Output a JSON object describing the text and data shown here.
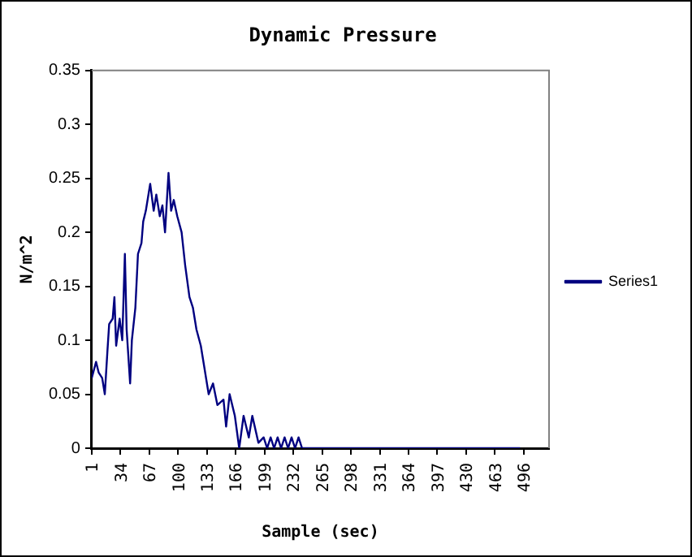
{
  "chart_data": {
    "type": "line",
    "title": "Dynamic Pressure",
    "xlabel": "Sample (sec)",
    "ylabel": "N/m^2",
    "xlim": [
      1,
      525
    ],
    "xticks": [
      1,
      34,
      67,
      100,
      133,
      166,
      199,
      232,
      265,
      298,
      331,
      364,
      397,
      430,
      463,
      496
    ],
    "ylim": [
      0,
      0.35
    ],
    "yticks": [
      0,
      0.05,
      0.1,
      0.15,
      0.2,
      0.25,
      0.3,
      0.35
    ],
    "grid": false,
    "legend": "right",
    "marker": "none",
    "line_style": "solid",
    "series": [
      {
        "name": "Series1",
        "color": "#000080",
        "x": [
          1,
          6,
          9,
          13,
          16,
          19,
          21,
          25,
          27,
          29,
          33,
          36,
          39,
          41,
          45,
          47,
          51,
          54,
          58,
          60,
          63,
          68,
          72,
          75,
          79,
          82,
          85,
          89,
          92,
          95,
          99,
          104,
          108,
          113,
          117,
          121,
          126,
          130,
          135,
          140,
          145,
          152,
          155,
          159,
          165,
          170,
          175,
          181,
          185,
          192,
          198,
          202,
          206,
          210,
          214,
          218,
          222,
          226,
          230,
          234,
          238,
          242,
          250,
          270,
          300,
          330,
          360,
          390,
          420,
          450,
          480,
          492
        ],
        "values": [
          0.065,
          0.08,
          0.07,
          0.065,
          0.05,
          0.09,
          0.115,
          0.12,
          0.14,
          0.095,
          0.12,
          0.1,
          0.18,
          0.11,
          0.06,
          0.1,
          0.13,
          0.18,
          0.19,
          0.21,
          0.22,
          0.245,
          0.22,
          0.235,
          0.215,
          0.225,
          0.2,
          0.255,
          0.22,
          0.23,
          0.215,
          0.2,
          0.17,
          0.14,
          0.13,
          0.11,
          0.095,
          0.075,
          0.05,
          0.06,
          0.04,
          0.045,
          0.02,
          0.05,
          0.03,
          0,
          0.03,
          0.01,
          0.03,
          0.005,
          0.01,
          0,
          0.01,
          0,
          0.01,
          0,
          0.01,
          0,
          0.01,
          0,
          0.01,
          0,
          0,
          0,
          0,
          0,
          0,
          0,
          0,
          0,
          0,
          0
        ]
      }
    ]
  }
}
